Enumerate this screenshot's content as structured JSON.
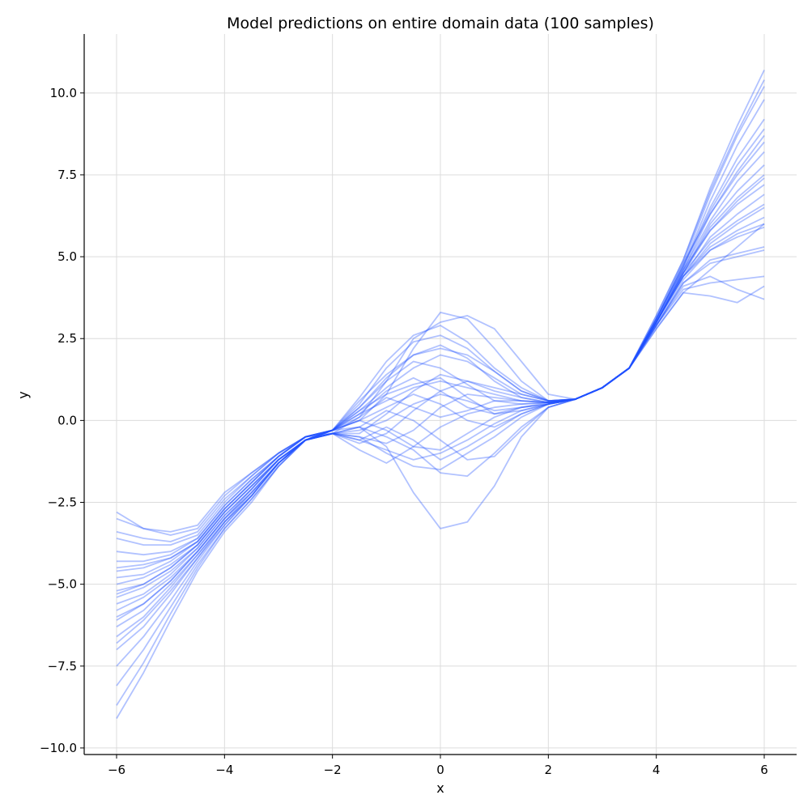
{
  "chart_data": {
    "type": "line",
    "title": "Model predictions on entire domain data (100 samples)",
    "xlabel": "x",
    "ylabel": "y",
    "xlim": [
      -6.6,
      6.6
    ],
    "ylim": [
      -10.2,
      11.8
    ],
    "x_ticks": [
      -6,
      -4,
      -2,
      0,
      2,
      4,
      6
    ],
    "x_tick_labels": [
      "−6",
      "−4",
      "−2",
      "0",
      "2",
      "4",
      "6"
    ],
    "y_ticks": [
      -10,
      -7.5,
      -5,
      -2.5,
      0,
      2.5,
      5,
      7.5,
      10
    ],
    "y_tick_labels": [
      "−10.0",
      "−7.5",
      "−5.0",
      "−2.5",
      "0.0",
      "2.5",
      "5.0",
      "7.5",
      "10.0"
    ],
    "grid": true,
    "line_color": "#1f4fff",
    "line_alpha": 0.35,
    "x": [
      -6,
      -5.5,
      -5,
      -4.5,
      -4,
      -3.5,
      -3,
      -2.5,
      -2,
      -1.5,
      -1,
      -0.5,
      0,
      0.5,
      1,
      1.5,
      2,
      2.5,
      3,
      3.5,
      4,
      4.5,
      5,
      5.5,
      6
    ],
    "series": [
      {
        "values": [
          -2.8,
          -3.3,
          -3.4,
          -3.2,
          -2.2,
          -1.6,
          -1.0,
          -0.5,
          -0.3,
          0.0,
          0.8,
          2.2,
          3.3,
          3.1,
          2.2,
          1.2,
          0.6,
          0.65,
          1.0,
          1.6,
          2.8,
          3.9,
          4.6,
          5.3,
          6.0
        ]
      },
      {
        "values": [
          -3.0,
          -3.3,
          -3.5,
          -3.3,
          -2.3,
          -1.6,
          -1.0,
          -0.5,
          -0.3,
          0.1,
          1.2,
          2.5,
          3.0,
          3.2,
          2.8,
          1.8,
          0.8,
          0.65,
          1.0,
          1.6,
          2.8,
          3.9,
          3.8,
          3.6,
          4.1
        ]
      },
      {
        "values": [
          -3.4,
          -3.6,
          -3.7,
          -3.4,
          -2.4,
          -1.7,
          -1.0,
          -0.5,
          -0.4,
          -0.5,
          -1.0,
          -1.4,
          -1.5,
          -1.0,
          -0.5,
          0.1,
          0.5,
          0.65,
          1.0,
          1.6,
          2.9,
          4.0,
          4.2,
          4.3,
          4.4
        ]
      },
      {
        "values": [
          -3.6,
          -3.8,
          -3.8,
          -3.5,
          -2.5,
          -1.7,
          -1.0,
          -0.5,
          -0.3,
          -0.2,
          -0.8,
          -2.2,
          -3.3,
          -3.1,
          -2.0,
          -0.5,
          0.4,
          0.65,
          1.0,
          1.6,
          2.9,
          4.1,
          4.4,
          4.0,
          3.7
        ]
      },
      {
        "values": [
          -4.0,
          -4.1,
          -4.0,
          -3.6,
          -2.6,
          -1.8,
          -1.1,
          -0.5,
          -0.3,
          0.3,
          1.0,
          1.6,
          2.0,
          1.8,
          1.3,
          0.8,
          0.6,
          0.65,
          1.0,
          1.6,
          2.9,
          4.2,
          4.8,
          5.0,
          5.2
        ]
      },
      {
        "values": [
          -4.3,
          -4.3,
          -4.1,
          -3.6,
          -2.6,
          -1.8,
          -1.1,
          -0.5,
          -0.3,
          0.6,
          1.4,
          2.0,
          2.2,
          2.0,
          1.5,
          0.9,
          0.6,
          0.65,
          1.0,
          1.6,
          2.9,
          4.3,
          5.2,
          5.6,
          5.9
        ]
      },
      {
        "values": [
          -4.6,
          -4.5,
          -4.2,
          -3.7,
          -2.7,
          -1.9,
          -1.1,
          -0.5,
          -0.4,
          -0.3,
          0.0,
          0.5,
          0.8,
          0.6,
          0.3,
          0.4,
          0.5,
          0.65,
          1.0,
          1.6,
          3.0,
          4.4,
          5.4,
          6.0,
          6.5
        ]
      },
      {
        "values": [
          -4.8,
          -4.7,
          -4.3,
          -3.7,
          -2.7,
          -1.9,
          -1.1,
          -0.5,
          -0.3,
          0.2,
          0.6,
          1.0,
          1.2,
          1.0,
          0.8,
          0.6,
          0.55,
          0.65,
          1.0,
          1.6,
          3.0,
          4.4,
          5.6,
          6.3,
          6.9
        ]
      },
      {
        "values": [
          -5.0,
          -4.8,
          -4.4,
          -3.8,
          -2.8,
          -2.0,
          -1.2,
          -0.6,
          -0.4,
          -0.6,
          -0.9,
          -1.2,
          -1.0,
          -0.6,
          -0.1,
          0.3,
          0.5,
          0.65,
          1.0,
          1.6,
          3.0,
          4.5,
          5.8,
          6.7,
          7.4
        ]
      },
      {
        "values": [
          -5.2,
          -5.0,
          -4.5,
          -3.8,
          -2.8,
          -2.0,
          -1.2,
          -0.6,
          -0.3,
          0.4,
          1.2,
          1.8,
          1.6,
          1.1,
          0.6,
          0.5,
          0.55,
          0.65,
          1.0,
          1.6,
          3.0,
          4.5,
          6.0,
          7.0,
          7.8
        ]
      },
      {
        "values": [
          -5.4,
          -5.1,
          -4.6,
          -3.9,
          -2.9,
          -2.1,
          -1.2,
          -0.6,
          -0.4,
          -0.9,
          -1.3,
          -0.8,
          -0.2,
          0.2,
          0.4,
          0.5,
          0.55,
          0.65,
          1.0,
          1.6,
          3.0,
          4.6,
          6.1,
          7.3,
          8.2
        ]
      },
      {
        "values": [
          -5.6,
          -5.3,
          -4.7,
          -3.9,
          -2.9,
          -2.1,
          -1.2,
          -0.6,
          -0.3,
          0.0,
          0.4,
          0.8,
          0.5,
          0.0,
          -0.2,
          0.2,
          0.5,
          0.65,
          1.0,
          1.6,
          3.1,
          4.6,
          6.3,
          7.6,
          8.7
        ]
      },
      {
        "values": [
          -5.8,
          -5.4,
          -4.8,
          -4.0,
          -3.0,
          -2.1,
          -1.2,
          -0.6,
          -0.4,
          -0.2,
          -0.5,
          -0.9,
          -1.6,
          -1.7,
          -1.0,
          -0.2,
          0.4,
          0.65,
          1.0,
          1.6,
          3.1,
          4.7,
          6.5,
          8.0,
          9.2
        ]
      },
      {
        "values": [
          -6.0,
          -5.6,
          -4.9,
          -4.0,
          -3.0,
          -2.2,
          -1.3,
          -0.6,
          -0.3,
          0.5,
          1.6,
          2.4,
          2.6,
          2.2,
          1.5,
          0.9,
          0.6,
          0.65,
          1.0,
          1.6,
          3.1,
          4.7,
          6.7,
          8.4,
          9.8
        ]
      },
      {
        "values": [
          -6.3,
          -5.8,
          -5.0,
          -4.1,
          -3.1,
          -2.2,
          -1.3,
          -0.6,
          -0.4,
          -0.4,
          0.2,
          0.9,
          1.4,
          1.2,
          0.9,
          0.7,
          0.55,
          0.65,
          1.0,
          1.6,
          3.1,
          4.8,
          6.9,
          8.7,
          10.2
        ]
      },
      {
        "values": [
          -6.6,
          -6.0,
          -5.1,
          -4.1,
          -3.1,
          -2.3,
          -1.3,
          -0.6,
          -0.4,
          -0.7,
          -0.4,
          0.3,
          0.9,
          1.2,
          1.0,
          0.8,
          0.6,
          0.65,
          1.0,
          1.6,
          3.2,
          4.9,
          7.1,
          9.0,
          10.7
        ]
      },
      {
        "values": [
          -7.0,
          -6.3,
          -5.3,
          -4.2,
          -3.2,
          -2.3,
          -1.3,
          -0.6,
          -0.3,
          0.2,
          0.9,
          1.3,
          0.9,
          0.4,
          0.2,
          0.4,
          0.55,
          0.65,
          1.0,
          1.6,
          3.1,
          4.8,
          6.3,
          7.5,
          8.5
        ]
      },
      {
        "values": [
          -7.5,
          -6.6,
          -5.5,
          -4.3,
          -3.2,
          -2.3,
          -1.3,
          -0.6,
          -0.4,
          -0.2,
          0.3,
          0.0,
          -0.6,
          -1.2,
          -1.1,
          -0.3,
          0.4,
          0.65,
          1.0,
          1.6,
          3.0,
          4.6,
          5.8,
          6.6,
          7.2
        ]
      },
      {
        "values": [
          -8.1,
          -7.0,
          -5.7,
          -4.4,
          -3.3,
          -2.4,
          -1.4,
          -0.6,
          -0.4,
          0.1,
          0.7,
          0.4,
          0.1,
          0.3,
          0.6,
          0.6,
          0.55,
          0.65,
          1.0,
          1.6,
          3.0,
          4.5,
          5.5,
          6.1,
          6.6
        ]
      },
      {
        "values": [
          -8.7,
          -7.4,
          -5.9,
          -4.5,
          -3.3,
          -2.4,
          -1.4,
          -0.6,
          -0.3,
          0.3,
          0.8,
          1.1,
          1.3,
          0.7,
          0.2,
          0.3,
          0.5,
          0.65,
          1.0,
          1.6,
          3.0,
          4.4,
          5.2,
          5.7,
          6.0
        ]
      },
      {
        "values": [
          -9.1,
          -7.7,
          -6.1,
          -4.6,
          -3.4,
          -2.5,
          -1.4,
          -0.6,
          -0.4,
          -0.5,
          -0.7,
          -0.3,
          0.4,
          0.8,
          0.7,
          0.6,
          0.55,
          0.65,
          1.0,
          1.6,
          2.9,
          4.2,
          4.9,
          5.1,
          5.3
        ]
      },
      {
        "values": [
          -5.3,
          -5.0,
          -4.5,
          -3.8,
          -2.8,
          -2.0,
          -1.2,
          -0.6,
          -0.3,
          0.7,
          1.8,
          2.6,
          2.9,
          2.4,
          1.6,
          1.0,
          0.6,
          0.65,
          1.0,
          1.6,
          3.0,
          4.5,
          5.9,
          6.8,
          7.5
        ]
      },
      {
        "values": [
          -6.1,
          -5.6,
          -4.9,
          -4.0,
          -3.0,
          -2.2,
          -1.3,
          -0.6,
          -0.4,
          -0.6,
          -0.2,
          -0.6,
          -1.2,
          -0.8,
          -0.3,
          0.2,
          0.5,
          0.65,
          1.0,
          1.6,
          3.1,
          4.7,
          6.4,
          7.8,
          8.9
        ]
      },
      {
        "values": [
          -4.5,
          -4.4,
          -4.2,
          -3.7,
          -2.7,
          -1.9,
          -1.1,
          -0.5,
          -0.3,
          0.0,
          -0.3,
          -0.8,
          -0.9,
          -0.4,
          0.1,
          0.4,
          0.5,
          0.65,
          1.0,
          1.6,
          3.0,
          4.4,
          5.3,
          5.8,
          6.2
        ]
      },
      {
        "values": [
          -6.8,
          -6.1,
          -5.2,
          -4.2,
          -3.1,
          -2.3,
          -1.3,
          -0.6,
          -0.3,
          0.4,
          1.3,
          2.0,
          2.3,
          1.9,
          1.2,
          0.7,
          0.55,
          0.65,
          1.0,
          1.6,
          3.2,
          4.9,
          7.0,
          8.8,
          10.4
        ]
      }
    ]
  }
}
